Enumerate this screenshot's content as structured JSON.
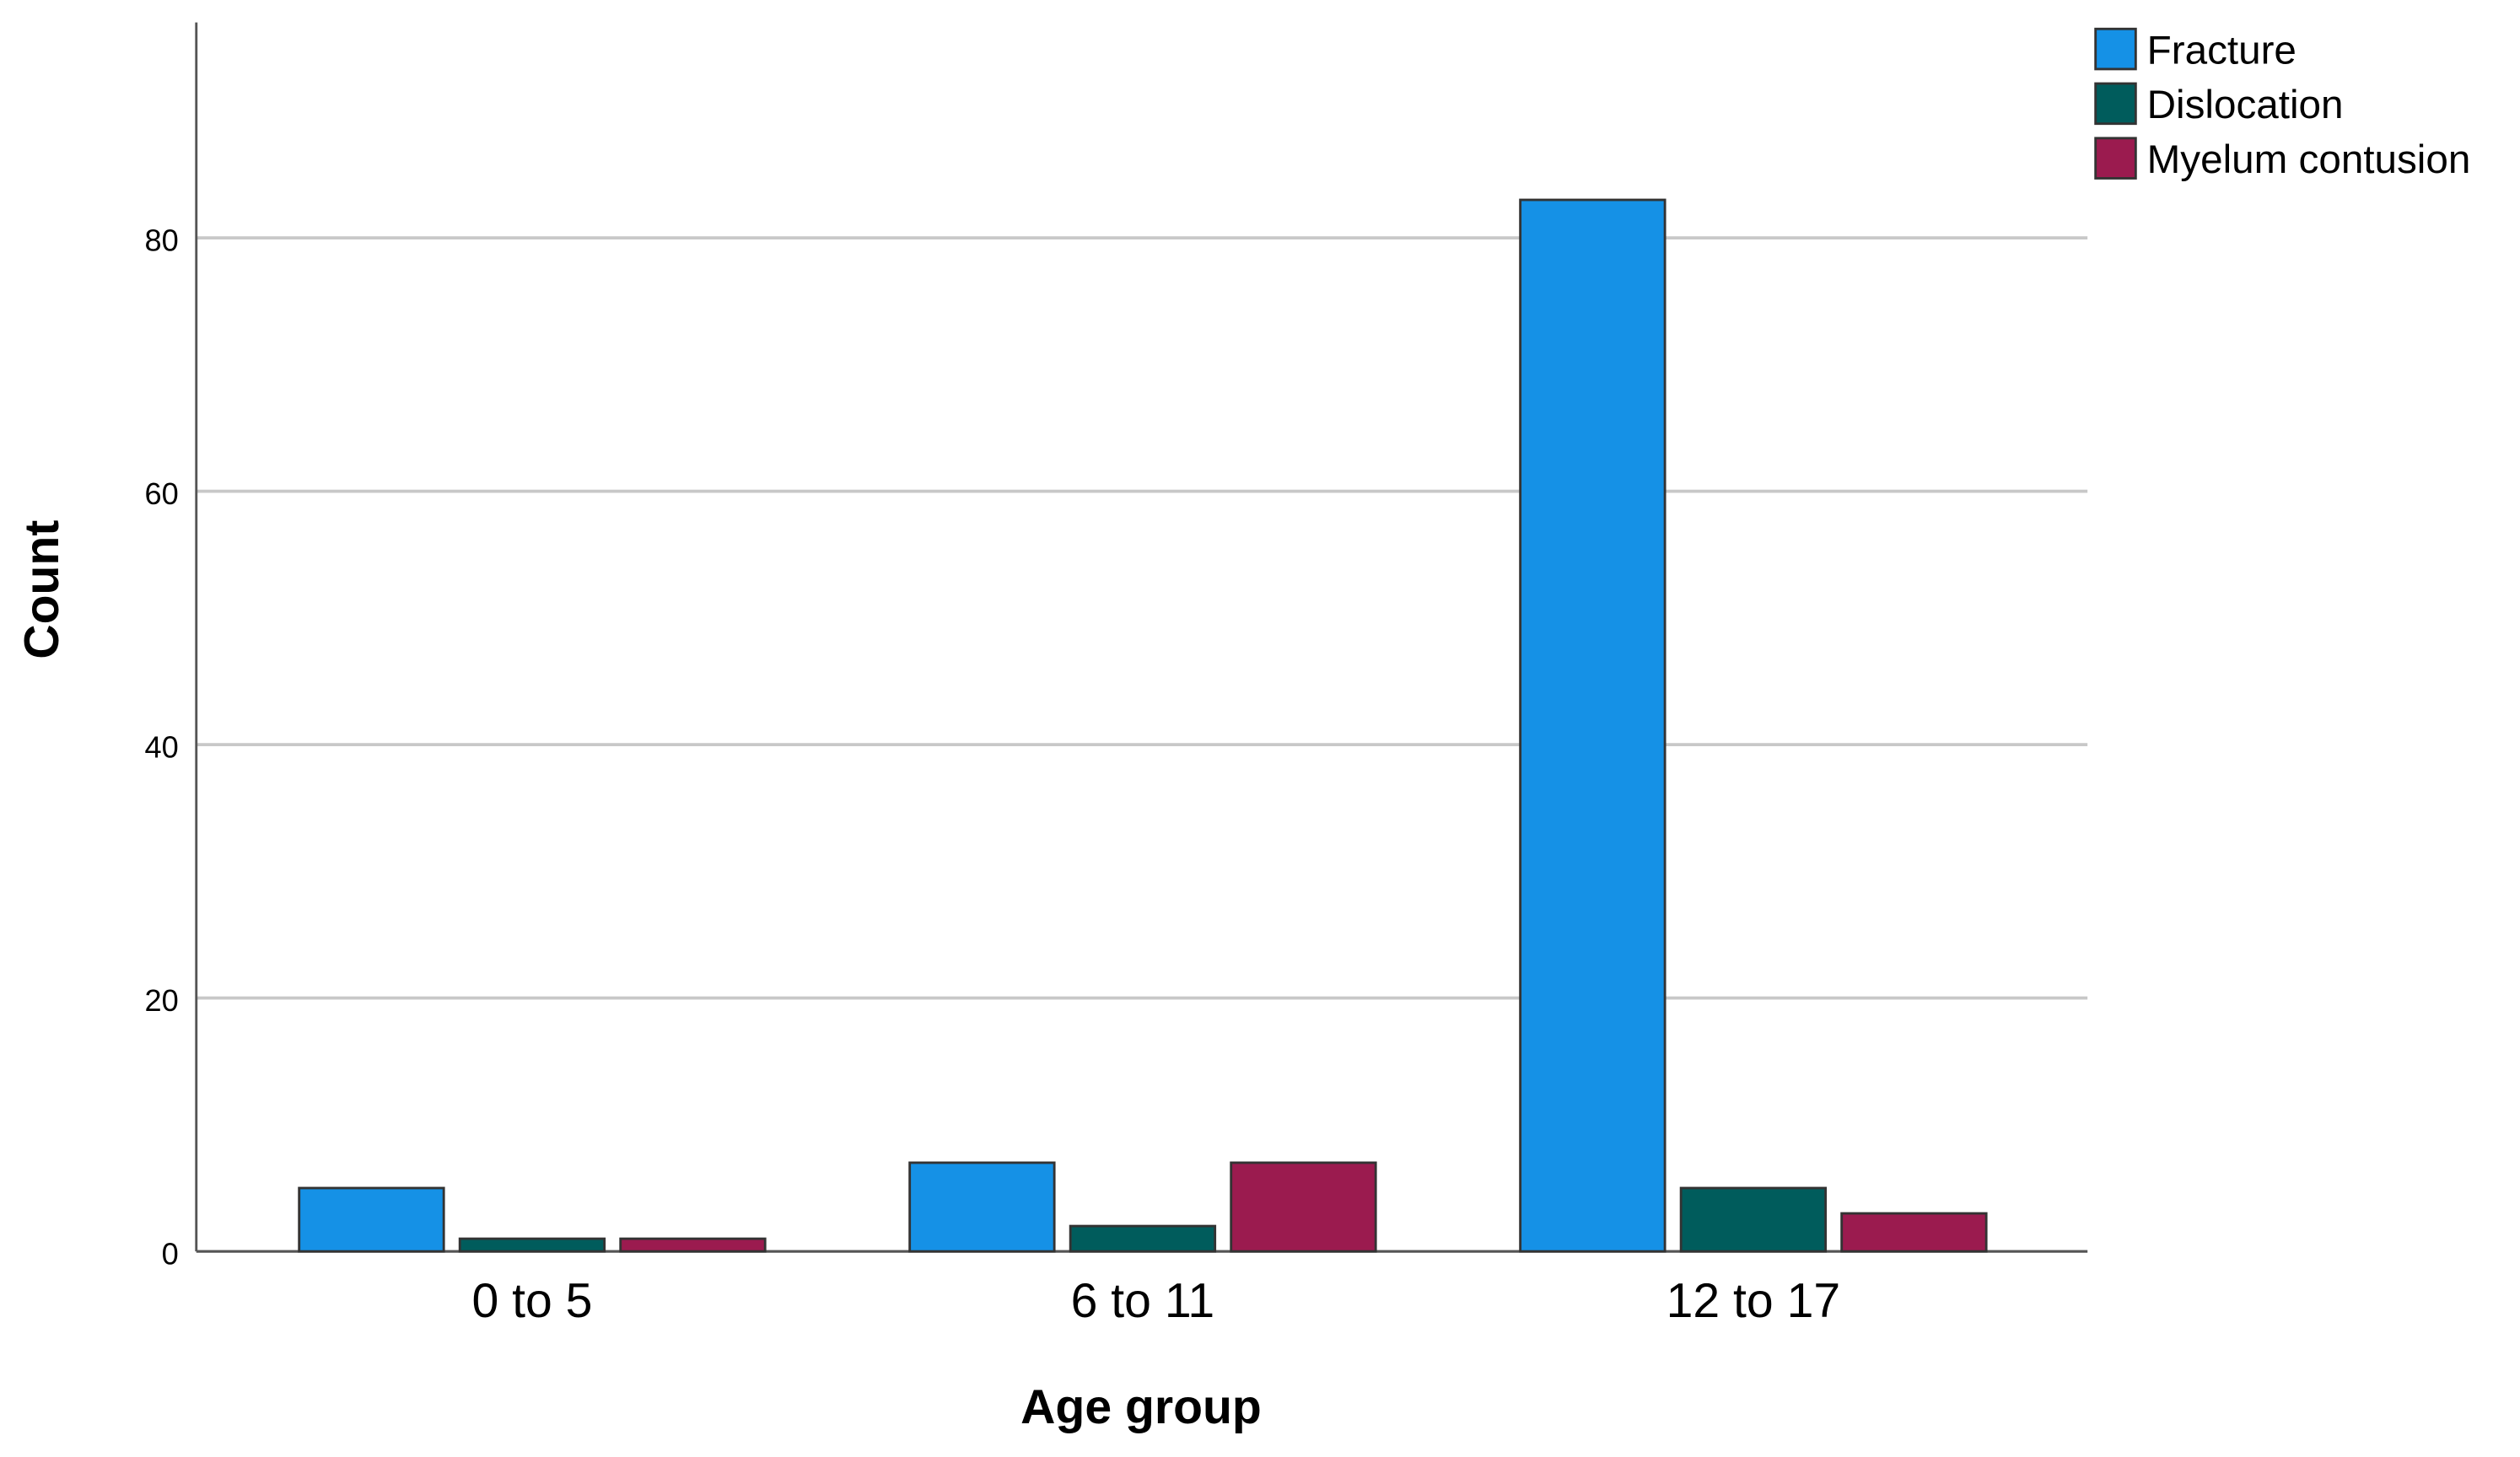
{
  "chart_data": {
    "type": "bar",
    "x_label": "Age group",
    "y_label": "Count",
    "categories": [
      "0 to 5",
      "6 to 11",
      "12 to 17"
    ],
    "series": [
      {
        "name": "Fracture",
        "color": "#1591e6",
        "values": [
          5,
          7,
          83
        ]
      },
      {
        "name": "Dislocation",
        "color": "#005c5c",
        "values": [
          1,
          2,
          5
        ]
      },
      {
        "name": "Myelum contusion",
        "color": "#9b1b4f",
        "values": [
          1,
          7,
          3
        ]
      }
    ],
    "ylim": [
      0,
      97
    ],
    "yticks": [
      0,
      20,
      40,
      60,
      80
    ],
    "grid": true,
    "legend": "top-right"
  }
}
